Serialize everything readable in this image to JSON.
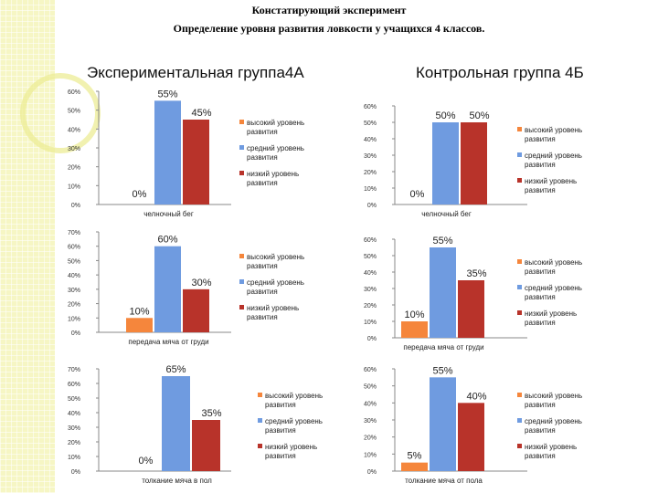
{
  "header": {
    "title": "Констатирующий эксперимент",
    "subtitle": "Определение уровня развития ловкости у учащихся 4 классов."
  },
  "groups": {
    "experimental": "Экспериментальная группа4А",
    "control": "Контрольная группа 4Б"
  },
  "colors": {
    "high": "#f5863c",
    "medium": "#6f9be0",
    "low": "#b8332a"
  },
  "chart_data": [
    {
      "type": "bar",
      "group": "4A",
      "categories": [
        "челночный бег"
      ],
      "series": [
        {
          "name": "высокий уровень развития",
          "values": [
            0
          ]
        },
        {
          "name": "средний уровень развития",
          "values": [
            55
          ]
        },
        {
          "name": "низкий уровень развития",
          "values": [
            45
          ]
        }
      ],
      "data_labels": [
        "0%",
        "55%",
        "45%"
      ],
      "xlabel": "челночный бег",
      "ylim": [
        0,
        60
      ],
      "yticks": [
        "0%",
        "10%",
        "20%",
        "30%",
        "40%",
        "50%",
        "60%"
      ],
      "legend": "right"
    },
    {
      "type": "bar",
      "group": "4Б",
      "categories": [
        "челночный бег"
      ],
      "series": [
        {
          "name": "высокий уровень развития",
          "values": [
            0
          ]
        },
        {
          "name": "средний уровень развития",
          "values": [
            50
          ]
        },
        {
          "name": "низкий уровень развития",
          "values": [
            50
          ]
        }
      ],
      "data_labels": [
        "0%",
        "50%",
        "50%"
      ],
      "xlabel": "челночный бег",
      "ylim": [
        0,
        60
      ],
      "yticks": [
        "0%",
        "10%",
        "20%",
        "30%",
        "40%",
        "50%",
        "60%"
      ],
      "legend": "right"
    },
    {
      "type": "bar",
      "group": "4A",
      "categories": [
        "передача мяча от груди"
      ],
      "series": [
        {
          "name": "высокий уровень развития",
          "values": [
            10
          ]
        },
        {
          "name": "средний уровень развития",
          "values": [
            60
          ]
        },
        {
          "name": "низкий уровень развития",
          "values": [
            30
          ]
        }
      ],
      "data_labels": [
        "10%",
        "60%",
        "30%"
      ],
      "xlabel": "передача мяча от груди",
      "ylim": [
        0,
        70
      ],
      "yticks": [
        "0%",
        "10%",
        "20%",
        "30%",
        "40%",
        "50%",
        "60%",
        "70%"
      ],
      "legend": "right"
    },
    {
      "type": "bar",
      "group": "4Б",
      "categories": [
        "передача мяча от груди"
      ],
      "series": [
        {
          "name": "высокий уровень развития",
          "values": [
            10
          ]
        },
        {
          "name": "средний уровень развития",
          "values": [
            55
          ]
        },
        {
          "name": "низкий уровень развития",
          "values": [
            35
          ]
        }
      ],
      "data_labels": [
        "10%",
        "55%",
        "35%"
      ],
      "xlabel": "передача мяча от груди",
      "ylim": [
        0,
        60
      ],
      "yticks": [
        "0%",
        "10%",
        "20%",
        "30%",
        "40%",
        "50%",
        "60%"
      ],
      "legend": "right"
    },
    {
      "type": "bar",
      "group": "4A",
      "categories": [
        "толкание мяча в пол"
      ],
      "series": [
        {
          "name": "высокий уровень развития",
          "values": [
            0
          ]
        },
        {
          "name": "средний уровень развития",
          "values": [
            65
          ]
        },
        {
          "name": "низкий уровень развития",
          "values": [
            35
          ]
        }
      ],
      "data_labels": [
        "0%",
        "65%",
        "35%"
      ],
      "xlabel": "толкание мяча в пол",
      "ylim": [
        0,
        70
      ],
      "yticks": [
        "0%",
        "10%",
        "20%",
        "30%",
        "40%",
        "50%",
        "60%",
        "70%"
      ],
      "legend": "right"
    },
    {
      "type": "bar",
      "group": "4Б",
      "categories": [
        "толкание мяча от пола"
      ],
      "series": [
        {
          "name": "высокий уровень развития",
          "values": [
            5
          ]
        },
        {
          "name": "средний уровень развития",
          "values": [
            55
          ]
        },
        {
          "name": "низкий уровень развития",
          "values": [
            40
          ]
        }
      ],
      "data_labels": [
        "5%",
        "55%",
        "40%"
      ],
      "xlabel": "толкание мяча от пола",
      "ylim": [
        0,
        60
      ],
      "yticks": [
        "0%",
        "10%",
        "20%",
        "30%",
        "40%",
        "50%",
        "60%"
      ],
      "legend": "right"
    }
  ]
}
